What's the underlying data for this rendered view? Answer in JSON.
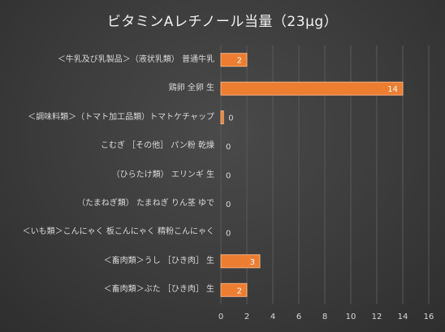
{
  "chart_data": {
    "type": "bar",
    "orientation": "horizontal",
    "title": "ビタミンAレチノール当量（23μg）",
    "categories": [
      "＜牛乳及び乳製品＞（液状乳類） 普通牛乳",
      "鶏卵 全卵 生",
      "＜調味料類＞（トマト加工品類）トマトケチャップ",
      "こむぎ ［その他］ パン粉 乾燥",
      "（ひらたけ類） エリンギ 生",
      "（たまねぎ類） たまねぎ りん茎 ゆで",
      "＜いも類＞こんにゃく 板こんにゃく 精粉こんにゃく",
      "＜畜肉類＞うし ［ひき肉］ 生",
      "＜畜肉類＞ぶた ［ひき肉］ 生"
    ],
    "values": [
      2,
      14,
      0.2,
      0,
      0,
      0,
      0,
      3,
      2
    ],
    "value_labels": [
      "2",
      "14",
      "0",
      "0",
      "0",
      "0",
      "0",
      "3",
      "2"
    ],
    "xlim": [
      0,
      16
    ],
    "ticks": [
      "0",
      "2",
      "4",
      "6",
      "8",
      "10",
      "12",
      "14",
      "16"
    ],
    "grid": true,
    "colors": {
      "bar": "#ed7d31",
      "bar_edge": "#f4b183",
      "grid": "#595959",
      "text": "#d9d9d9"
    }
  }
}
